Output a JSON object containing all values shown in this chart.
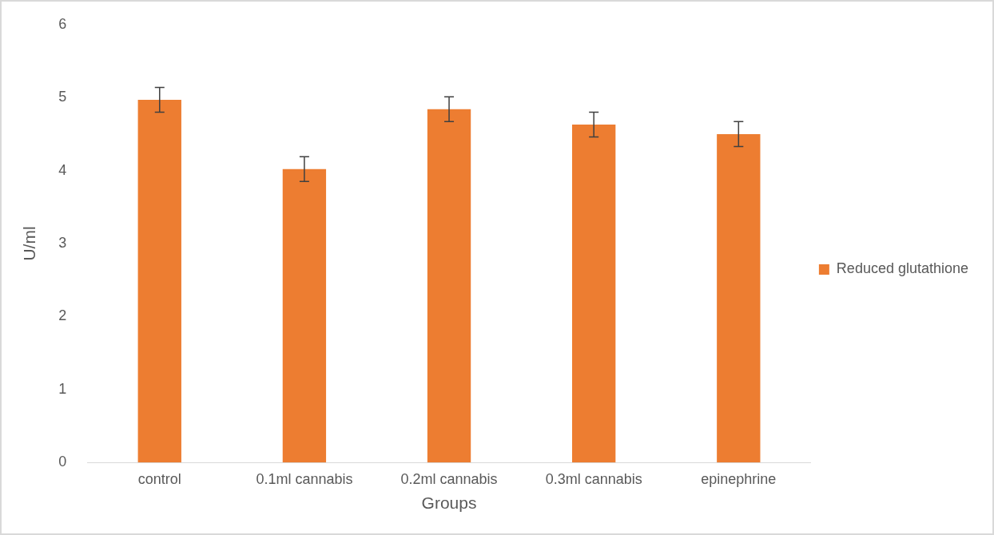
{
  "chart_data": {
    "type": "bar",
    "xlabel": "Groups",
    "ylabel": "U/ml",
    "categories": [
      "control",
      "0.1ml cannabis",
      "0.2ml cannabis",
      "0.3ml cannabis",
      "epinephrine"
    ],
    "series": [
      {
        "name": "Reduced glutathione",
        "color": "#ed7d31",
        "values": [
          4.97,
          4.02,
          4.84,
          4.63,
          4.5
        ],
        "errors": [
          0.17,
          0.17,
          0.17,
          0.17,
          0.17
        ]
      }
    ],
    "ylim": [
      0,
      6
    ],
    "yticks": [
      0,
      1,
      2,
      3,
      4,
      5,
      6
    ],
    "grid": false,
    "legend": "right"
  }
}
